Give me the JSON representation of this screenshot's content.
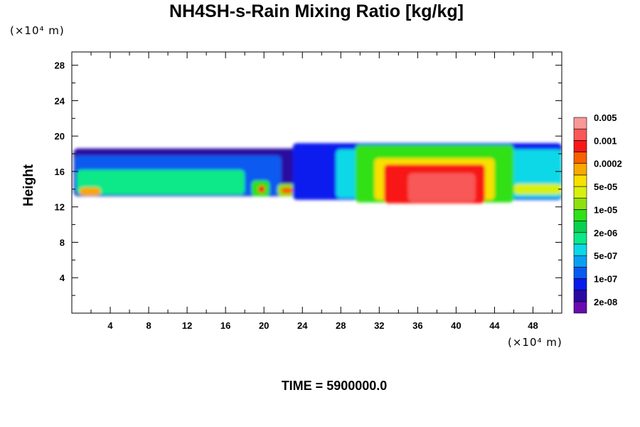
{
  "chart_data": {
    "type": "heatmap",
    "title": "NH4SH-s-Rain Mixing Ratio [kg/kg]",
    "xlabel": "",
    "ylabel": "Height",
    "x_unit": "(×10⁴ m)",
    "y_unit": "(×10⁴ m)",
    "xlim": [
      0,
      51
    ],
    "ylim": [
      0,
      29.5
    ],
    "x_ticks": [
      4,
      8,
      12,
      16,
      20,
      24,
      28,
      32,
      36,
      40,
      44,
      48
    ],
    "y_ticks": [
      4,
      8,
      12,
      16,
      20,
      24,
      28
    ],
    "colorbar": {
      "levels": [
        "2e-08",
        "1e-07",
        "5e-07",
        "2e-06",
        "1e-05",
        "5e-05",
        "0.0002",
        "0.001",
        "0.005"
      ],
      "colors": [
        "#6a0ab0",
        "#2a0aa0",
        "#0a1aee",
        "#0a5af0",
        "#0aa0f0",
        "#0ad8e8",
        "#0ae888",
        "#0ad050",
        "#30e018",
        "#90e010",
        "#d8f010",
        "#f8e000",
        "#f8a800",
        "#f86000",
        "#f81818",
        "#f85858",
        "#f89898"
      ]
    },
    "footer": "TIME = 5900000.0",
    "regions": [
      {
        "x": [
          0.2,
          51
        ],
        "y": [
          13.2,
          18.6
        ],
        "level": 1
      },
      {
        "x": [
          0.3,
          21.8
        ],
        "y": [
          13.3,
          17.8
        ],
        "level": 3
      },
      {
        "x": [
          0.5,
          18.0
        ],
        "y": [
          13.4,
          16.2
        ],
        "level": 6
      },
      {
        "x": [
          0.8,
          3.0
        ],
        "y": [
          13.3,
          14.2
        ],
        "level": 12
      },
      {
        "x": [
          18.7,
          20.6
        ],
        "y": [
          13.2,
          15.0
        ],
        "level": 8
      },
      {
        "x": [
          19.4,
          20.1
        ],
        "y": [
          13.6,
          14.4
        ],
        "level": 14
      },
      {
        "x": [
          21.4,
          23.6
        ],
        "y": [
          13.2,
          14.6
        ],
        "level": 9
      },
      {
        "x": [
          21.8,
          23.0
        ],
        "y": [
          13.5,
          14.2
        ],
        "level": 13
      },
      {
        "x": [
          23.0,
          51
        ],
        "y": [
          12.8,
          19.2
        ],
        "level": 2
      },
      {
        "x": [
          27.5,
          51
        ],
        "y": [
          13.0,
          18.5
        ],
        "level": 5
      },
      {
        "x": [
          29.5,
          46.0
        ],
        "y": [
          12.5,
          19.0
        ],
        "level": 8
      },
      {
        "x": [
          31.5,
          44.0
        ],
        "y": [
          12.8,
          17.5
        ],
        "level": 11
      },
      {
        "x": [
          32.5,
          43.0
        ],
        "y": [
          12.4,
          16.8
        ],
        "level": 14
      },
      {
        "x": [
          35.0,
          42.0
        ],
        "y": [
          12.6,
          15.8
        ],
        "level": 15
      },
      {
        "x": [
          46.0,
          51
        ],
        "y": [
          13.4,
          14.6
        ],
        "level": 10
      }
    ]
  },
  "colors": {
    "background": "#ffffff",
    "axis": "#000000"
  }
}
